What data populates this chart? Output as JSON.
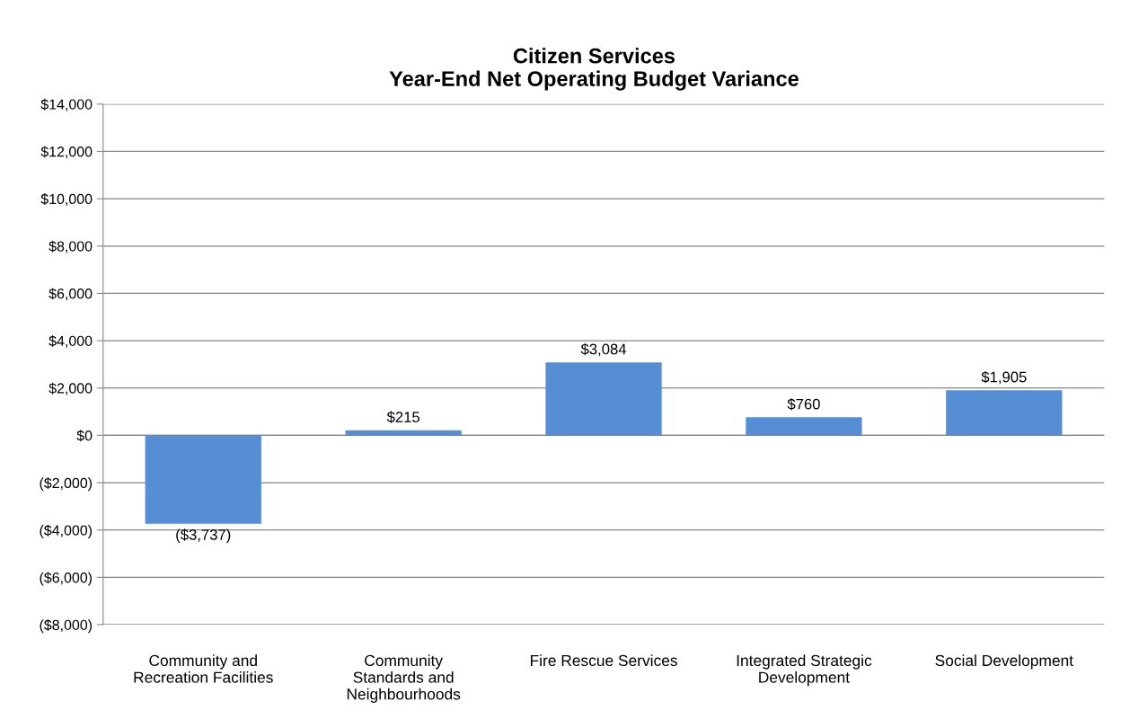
{
  "chart_data": {
    "type": "bar",
    "title": "Citizen Services\nYear-End Net Operating Budget Variance",
    "categories": [
      "Community and\nRecreation Facilities",
      "Community\nStandards and\nNeighbourhoods",
      "Fire Rescue Services",
      "Integrated Strategic\nDevelopment",
      "Social Development"
    ],
    "values": [
      -3737,
      215,
      3084,
      760,
      1905
    ],
    "value_labels": [
      "($3,737)",
      "$215",
      "$3,084",
      "$760",
      "$1,905"
    ],
    "color": "#558ed5",
    "ylim": [
      -8000,
      14000
    ],
    "yticks": [
      {
        "value": -8000,
        "label": "($8,000)"
      },
      {
        "value": -6000,
        "label": "($6,000)"
      },
      {
        "value": -4000,
        "label": "($4,000)"
      },
      {
        "value": -2000,
        "label": "($2,000)"
      },
      {
        "value": 0,
        "label": "$0"
      },
      {
        "value": 2000,
        "label": "$2,000"
      },
      {
        "value": 4000,
        "label": "$4,000"
      },
      {
        "value": 6000,
        "label": "$6,000"
      },
      {
        "value": 8000,
        "label": "$8,000"
      },
      {
        "value": 10000,
        "label": "$10,000"
      },
      {
        "value": 12000,
        "label": "$12,000"
      },
      {
        "value": 14000,
        "label": "$14,000"
      }
    ],
    "grid": "y"
  }
}
